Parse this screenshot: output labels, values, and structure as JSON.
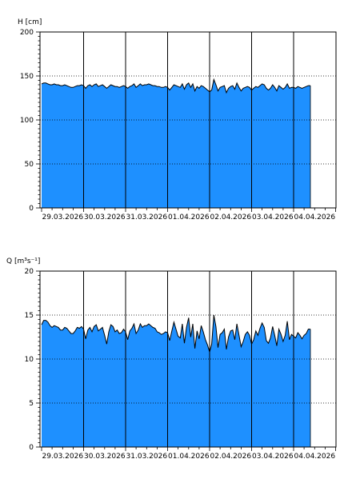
{
  "chart_data": [
    {
      "type": "area",
      "ylabel": "H [cm]",
      "ylim": [
        0,
        200
      ],
      "yticks": [
        0,
        50,
        100,
        150,
        200
      ],
      "x_tick_labels": [
        "29.03.2026",
        "30.03.2026",
        "31.03.2026",
        "01.04.2026",
        "02.04.2026",
        "03.04.2026",
        "04.04.2026"
      ],
      "x_range_days": [
        0,
        7
      ],
      "grid": true,
      "fill_color": "#1e90ff",
      "series": [
        {
          "x": [
            0,
            0.05,
            0.1,
            0.15,
            0.2,
            0.25,
            0.3,
            0.35,
            0.4,
            0.45,
            0.5,
            0.55,
            0.6,
            0.65,
            0.7,
            0.75,
            0.8,
            0.85,
            0.9,
            0.95,
            1,
            1.05,
            1.1,
            1.15,
            1.2,
            1.25,
            1.3,
            1.35,
            1.4,
            1.45,
            1.5,
            1.55,
            1.6,
            1.65,
            1.7,
            1.75,
            1.8,
            1.85,
            1.9,
            1.95,
            2,
            2.05,
            2.1,
            2.15,
            2.2,
            2.25,
            2.3,
            2.35,
            2.4,
            2.45,
            2.5,
            2.55,
            2.6,
            2.65,
            2.7,
            2.75,
            2.8,
            2.85,
            2.9,
            2.95,
            3,
            3.05,
            3.1,
            3.15,
            3.2,
            3.25,
            3.3,
            3.35,
            3.4,
            3.45,
            3.5,
            3.55,
            3.6,
            3.65,
            3.7,
            3.75,
            3.8,
            3.85,
            3.9,
            3.95,
            4,
            4.05,
            4.1,
            4.15,
            4.2,
            4.25,
            4.3,
            4.35,
            4.4,
            4.45,
            4.5,
            4.55,
            4.6,
            4.65,
            4.7,
            4.75,
            4.8,
            4.85,
            4.9,
            4.95,
            5,
            5.05,
            5.1,
            5.15,
            5.2,
            5.25,
            5.3,
            5.35,
            5.4,
            5.45,
            5.5,
            5.55,
            5.6,
            5.65,
            5.7,
            5.75,
            5.8,
            5.85,
            5.9,
            5.95,
            6,
            6.05,
            6.1,
            6.15,
            6.2,
            6.25,
            6.3,
            6.35,
            6.4
          ],
          "values": [
            141,
            142,
            142,
            141,
            140,
            140,
            141,
            140,
            140,
            139,
            139,
            140,
            139,
            138,
            137,
            137,
            138,
            139,
            139,
            140,
            139,
            136,
            139,
            140,
            138,
            140,
            141,
            138,
            139,
            140,
            138,
            136,
            138,
            140,
            139,
            138,
            138,
            137,
            138,
            139,
            138,
            136,
            138,
            139,
            141,
            137,
            139,
            141,
            139,
            140,
            140,
            141,
            140,
            139,
            139,
            138,
            138,
            137,
            137,
            138,
            137,
            134,
            137,
            140,
            139,
            138,
            137,
            141,
            135,
            140,
            142,
            137,
            141,
            133,
            138,
            136,
            139,
            138,
            136,
            134,
            132,
            134,
            146,
            140,
            133,
            137,
            138,
            139,
            131,
            136,
            138,
            139,
            135,
            142,
            137,
            133,
            136,
            137,
            138,
            137,
            134,
            136,
            138,
            137,
            139,
            141,
            140,
            136,
            134,
            136,
            140,
            137,
            133,
            139,
            137,
            135,
            137,
            141,
            136,
            137,
            137,
            136,
            138,
            137,
            136,
            137,
            138,
            139,
            139
          ],
          "range_days": [
            0,
            6.4
          ]
        }
      ]
    },
    {
      "type": "area",
      "ylabel": "Q [m³s⁻¹]",
      "ylim": [
        0,
        20
      ],
      "yticks": [
        0,
        5,
        10,
        15,
        20
      ],
      "x_tick_labels": [
        "29.03.2026",
        "30.03.2026",
        "31.03.2026",
        "01.04.2026",
        "02.04.2026",
        "03.04.2026",
        "04.04.2026"
      ],
      "x_range_days": [
        0,
        7
      ],
      "grid": true,
      "fill_color": "#1e90ff",
      "series": [
        {
          "x": [
            0,
            0.05,
            0.1,
            0.15,
            0.2,
            0.25,
            0.3,
            0.35,
            0.4,
            0.45,
            0.5,
            0.55,
            0.6,
            0.65,
            0.7,
            0.75,
            0.8,
            0.85,
            0.9,
            0.95,
            1,
            1.05,
            1.1,
            1.15,
            1.2,
            1.25,
            1.3,
            1.35,
            1.4,
            1.45,
            1.5,
            1.55,
            1.6,
            1.65,
            1.7,
            1.75,
            1.8,
            1.85,
            1.9,
            1.95,
            2,
            2.05,
            2.1,
            2.15,
            2.2,
            2.25,
            2.3,
            2.35,
            2.4,
            2.45,
            2.5,
            2.55,
            2.6,
            2.65,
            2.7,
            2.75,
            2.8,
            2.85,
            2.9,
            2.95,
            3,
            3.05,
            3.1,
            3.15,
            3.2,
            3.25,
            3.3,
            3.35,
            3.4,
            3.45,
            3.5,
            3.55,
            3.6,
            3.65,
            3.7,
            3.75,
            3.8,
            3.85,
            3.9,
            3.95,
            4,
            4.05,
            4.1,
            4.15,
            4.2,
            4.25,
            4.3,
            4.35,
            4.4,
            4.45,
            4.5,
            4.55,
            4.6,
            4.65,
            4.7,
            4.75,
            4.8,
            4.85,
            4.9,
            4.95,
            5,
            5.05,
            5.1,
            5.15,
            5.2,
            5.25,
            5.3,
            5.35,
            5.4,
            5.45,
            5.5,
            5.55,
            5.6,
            5.65,
            5.7,
            5.75,
            5.8,
            5.85,
            5.9,
            5.95,
            6,
            6.05,
            6.1,
            6.15,
            6.2,
            6.25,
            6.3,
            6.35,
            6.4
          ],
          "values": [
            13.9,
            14.4,
            14.4,
            14.2,
            13.8,
            13.6,
            13.8,
            13.7,
            13.6,
            13.3,
            13.3,
            13.6,
            13.5,
            13.2,
            12.9,
            12.9,
            13.2,
            13.6,
            13.5,
            13.7,
            13.4,
            12.3,
            13.3,
            13.6,
            13.1,
            13.7,
            13.9,
            13.2,
            13.4,
            13.6,
            12.7,
            11.7,
            13.1,
            13.9,
            13.7,
            13.1,
            13.3,
            12.9,
            13.0,
            13.4,
            13.1,
            12.2,
            13.2,
            13.5,
            14.0,
            12.9,
            13.3,
            14.0,
            13.6,
            13.8,
            13.8,
            14.0,
            13.8,
            13.6,
            13.5,
            13.1,
            13.0,
            12.8,
            12.9,
            13.1,
            13.0,
            12.1,
            13.2,
            14.2,
            13.4,
            12.6,
            12.4,
            14.0,
            11.8,
            13.6,
            14.7,
            12.5,
            14.0,
            11.2,
            13.2,
            12.3,
            13.8,
            13.1,
            12.2,
            11.6,
            10.8,
            11.7,
            15.0,
            13.7,
            11.3,
            12.8,
            13.0,
            13.4,
            11.1,
            12.5,
            13.2,
            13.3,
            12.2,
            14.0,
            12.7,
            11.4,
            12.0,
            12.8,
            13.1,
            12.7,
            11.7,
            12.2,
            13.2,
            12.7,
            13.5,
            14.1,
            13.6,
            12.1,
            11.8,
            12.4,
            13.7,
            12.7,
            11.5,
            13.4,
            12.8,
            12.0,
            12.7,
            14.3,
            12.2,
            12.8,
            12.6,
            12.4,
            13.0,
            12.7,
            12.3,
            12.7,
            12.9,
            13.4,
            13.4
          ],
          "range_days": [
            0,
            6.4
          ]
        }
      ]
    }
  ]
}
